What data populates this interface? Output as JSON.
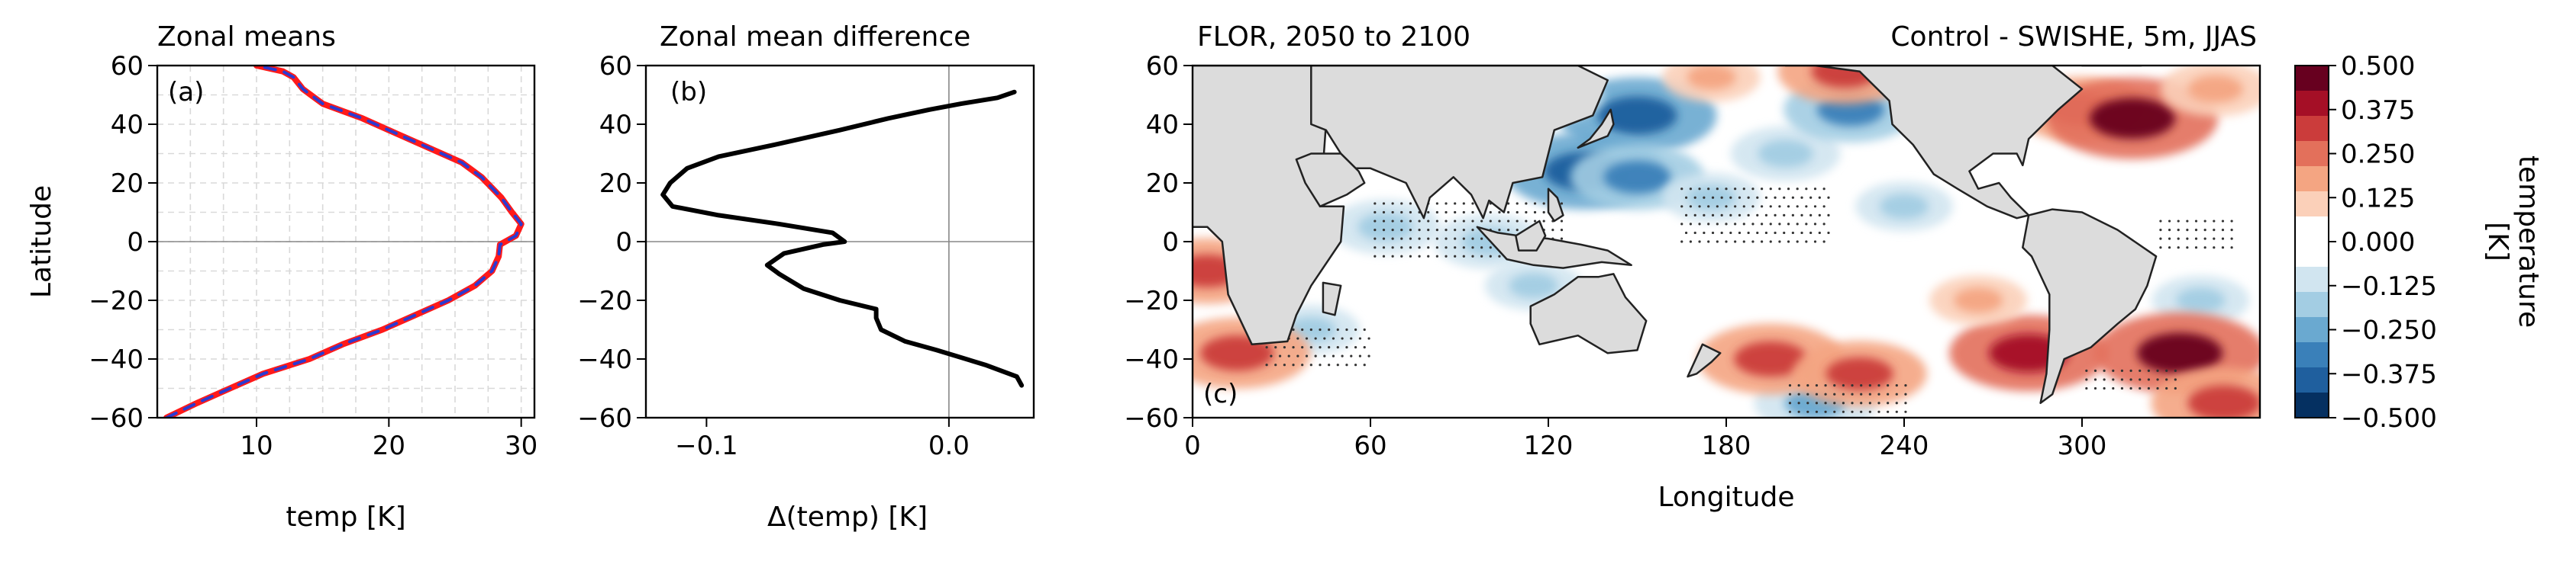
{
  "colors": {
    "zonal_line_a": "#ff1a1a",
    "zonal_line_b": "#2b3bd1",
    "difference_line": "#000000",
    "land": "#dcdcdc",
    "grid": "#d9d9d9"
  },
  "chart_data": [
    {
      "type": "line",
      "panel_label": "(a)",
      "title": "Zonal means",
      "xlabel": "temp [K]",
      "ylabel": "Latitude",
      "xlim": [
        2.5,
        31
      ],
      "ylim": [
        -60,
        60
      ],
      "xticks": [
        "10",
        "20",
        "30"
      ],
      "xtick_values": [
        10,
        20,
        30
      ],
      "yticks": [
        "60",
        "40",
        "20",
        "0",
        "−20",
        "−40",
        "−60"
      ],
      "ytick_values": [
        60,
        40,
        20,
        0,
        -20,
        -40,
        -60
      ],
      "grid": true,
      "series": [
        {
          "color": "#ff1a1a",
          "style": "solid",
          "points": [
            [
              3.2,
              -60
            ],
            [
              5.5,
              -55
            ],
            [
              8.0,
              -50
            ],
            [
              10.5,
              -45
            ],
            [
              14.0,
              -40
            ],
            [
              16.5,
              -35
            ],
            [
              19.5,
              -30
            ],
            [
              22.0,
              -25
            ],
            [
              24.5,
              -20
            ],
            [
              26.5,
              -15
            ],
            [
              27.8,
              -10
            ],
            [
              28.3,
              -5
            ],
            [
              28.4,
              -1
            ],
            [
              29.6,
              2
            ],
            [
              30.0,
              6
            ],
            [
              29.3,
              10
            ],
            [
              28.5,
              15
            ],
            [
              27.0,
              22
            ],
            [
              25.5,
              27
            ],
            [
              23.0,
              32
            ],
            [
              20.5,
              37
            ],
            [
              18.0,
              42
            ],
            [
              15.0,
              47
            ],
            [
              13.5,
              52
            ],
            [
              12.8,
              56
            ],
            [
              12.0,
              58
            ],
            [
              10.0,
              60
            ]
          ]
        },
        {
          "color": "#2b3bd1",
          "style": "dashed",
          "points": [
            [
              3.2,
              -60
            ],
            [
              5.5,
              -55
            ],
            [
              8.0,
              -50
            ],
            [
              10.5,
              -45
            ],
            [
              14.0,
              -40
            ],
            [
              16.5,
              -35
            ],
            [
              19.5,
              -30
            ],
            [
              22.0,
              -25
            ],
            [
              24.5,
              -20
            ],
            [
              26.5,
              -15
            ],
            [
              27.8,
              -10
            ],
            [
              28.3,
              -5
            ],
            [
              28.4,
              -1
            ],
            [
              29.6,
              2
            ],
            [
              30.0,
              6
            ],
            [
              29.3,
              10
            ],
            [
              28.5,
              15
            ],
            [
              27.0,
              22
            ],
            [
              25.5,
              27
            ],
            [
              23.0,
              32
            ],
            [
              20.5,
              37
            ],
            [
              18.0,
              42
            ],
            [
              15.0,
              47
            ],
            [
              13.5,
              52
            ],
            [
              12.8,
              56
            ],
            [
              12.0,
              58
            ],
            [
              10.0,
              60
            ]
          ]
        }
      ]
    },
    {
      "type": "line",
      "panel_label": "(b)",
      "title": "Zonal mean difference",
      "xlabel": "Δ(temp) [K]",
      "ylabel": "",
      "xlim": [
        -0.125,
        0.035
      ],
      "ylim": [
        -60,
        60
      ],
      "xticks": [
        "−0.1",
        "0.0"
      ],
      "xtick_values": [
        -0.1,
        0.0
      ],
      "yticks": [
        "60",
        "40",
        "20",
        "0",
        "−20",
        "−40",
        "−60"
      ],
      "ytick_values": [
        60,
        40,
        20,
        0,
        -20,
        -40,
        -60
      ],
      "grid": false,
      "series": [
        {
          "color": "#000000",
          "style": "solid",
          "points": [
            [
              0.03,
              -49
            ],
            [
              0.028,
              -46
            ],
            [
              0.015,
              -42
            ],
            [
              -0.005,
              -37
            ],
            [
              -0.018,
              -34
            ],
            [
              -0.028,
              -30
            ],
            [
              -0.03,
              -26
            ],
            [
              -0.03,
              -23
            ],
            [
              -0.045,
              -20
            ],
            [
              -0.06,
              -16
            ],
            [
              -0.07,
              -11
            ],
            [
              -0.075,
              -8
            ],
            [
              -0.068,
              -4
            ],
            [
              -0.052,
              -1
            ],
            [
              -0.043,
              0
            ],
            [
              -0.048,
              3
            ],
            [
              -0.07,
              6
            ],
            [
              -0.095,
              9
            ],
            [
              -0.114,
              12
            ],
            [
              -0.118,
              16
            ],
            [
              -0.115,
              20
            ],
            [
              -0.108,
              25
            ],
            [
              -0.095,
              29
            ],
            [
              -0.072,
              33
            ],
            [
              -0.045,
              38
            ],
            [
              -0.025,
              42
            ],
            [
              -0.008,
              45
            ],
            [
              0.005,
              47
            ],
            [
              0.02,
              49
            ],
            [
              0.027,
              51
            ]
          ]
        }
      ]
    },
    {
      "type": "heatmap",
      "panel_label": "(c)",
      "title_left": "FLOR, 2050 to 2100",
      "title_right": "Control - SWISHE, 5m, JJAS",
      "xlabel": "Longitude",
      "ylabel": "",
      "xlim": [
        0,
        360
      ],
      "ylim": [
        -60,
        60
      ],
      "xticks": [
        "0",
        "60",
        "120",
        "180",
        "240",
        "300"
      ],
      "xtick_values": [
        0,
        60,
        120,
        180,
        240,
        300
      ],
      "yticks": [
        "60",
        "40",
        "20",
        "0",
        "−20",
        "−40",
        "−60"
      ],
      "ytick_values": [
        60,
        40,
        20,
        0,
        -20,
        -40,
        -60
      ],
      "colorbar": {
        "label": "temperature [K]",
        "ticks": [
          "0.500",
          "0.375",
          "0.250",
          "0.125",
          "0.000",
          "−0.125",
          "−0.250",
          "−0.375",
          "−0.500"
        ],
        "tick_values": [
          0.5,
          0.375,
          0.25,
          0.125,
          0.0,
          -0.125,
          -0.25,
          -0.375,
          -0.5
        ],
        "levels": [
          "#67001f",
          "#a50f26",
          "#cb3c3b",
          "#e3705b",
          "#f4a582",
          "#fbd0b9",
          "#ffffff",
          "#ffffff",
          "#d1e5f0",
          "#a3cde3",
          "#6aa9d0",
          "#3a80b9",
          "#1f5f9e",
          "#053061"
        ]
      },
      "anomalies": [
        {
          "lon": 150,
          "lat": 43,
          "value": -0.4
        },
        {
          "lon": 132,
          "lat": 24,
          "value": -0.4
        },
        {
          "lon": 150,
          "lat": 22,
          "value": -0.3
        },
        {
          "lon": 120,
          "lat": 50,
          "value": -0.2
        },
        {
          "lon": 175,
          "lat": 15,
          "value": -0.15
        },
        {
          "lon": 200,
          "lat": 30,
          "value": -0.2
        },
        {
          "lon": 222,
          "lat": 45,
          "value": -0.3
        },
        {
          "lon": 240,
          "lat": 12,
          "value": -0.15
        },
        {
          "lon": 100,
          "lat": 0,
          "value": -0.2
        },
        {
          "lon": 65,
          "lat": 5,
          "value": -0.2
        },
        {
          "lon": 40,
          "lat": -30,
          "value": -0.15
        },
        {
          "lon": 115,
          "lat": -15,
          "value": -0.15
        },
        {
          "lon": 210,
          "lat": -55,
          "value": -0.25
        },
        {
          "lon": 340,
          "lat": -20,
          "value": -0.15
        },
        {
          "lon": 300,
          "lat": 45,
          "value": 0.3
        },
        {
          "lon": 317,
          "lat": 42,
          "value": 0.45
        },
        {
          "lon": 345,
          "lat": 52,
          "value": 0.2
        },
        {
          "lon": 282,
          "lat": -38,
          "value": 0.4
        },
        {
          "lon": 195,
          "lat": -40,
          "value": 0.35
        },
        {
          "lon": 225,
          "lat": -45,
          "value": 0.3
        },
        {
          "lon": 15,
          "lat": -38,
          "value": 0.35
        },
        {
          "lon": 333,
          "lat": -38,
          "value": 0.45
        },
        {
          "lon": 348,
          "lat": -55,
          "value": 0.35
        },
        {
          "lon": 5,
          "lat": -10,
          "value": 0.3
        },
        {
          "lon": 220,
          "lat": 58,
          "value": 0.3
        },
        {
          "lon": 255,
          "lat": 55,
          "value": 0.2
        },
        {
          "lon": 175,
          "lat": 56,
          "value": 0.15
        },
        {
          "lon": 265,
          "lat": -20,
          "value": 0.15
        }
      ]
    }
  ]
}
